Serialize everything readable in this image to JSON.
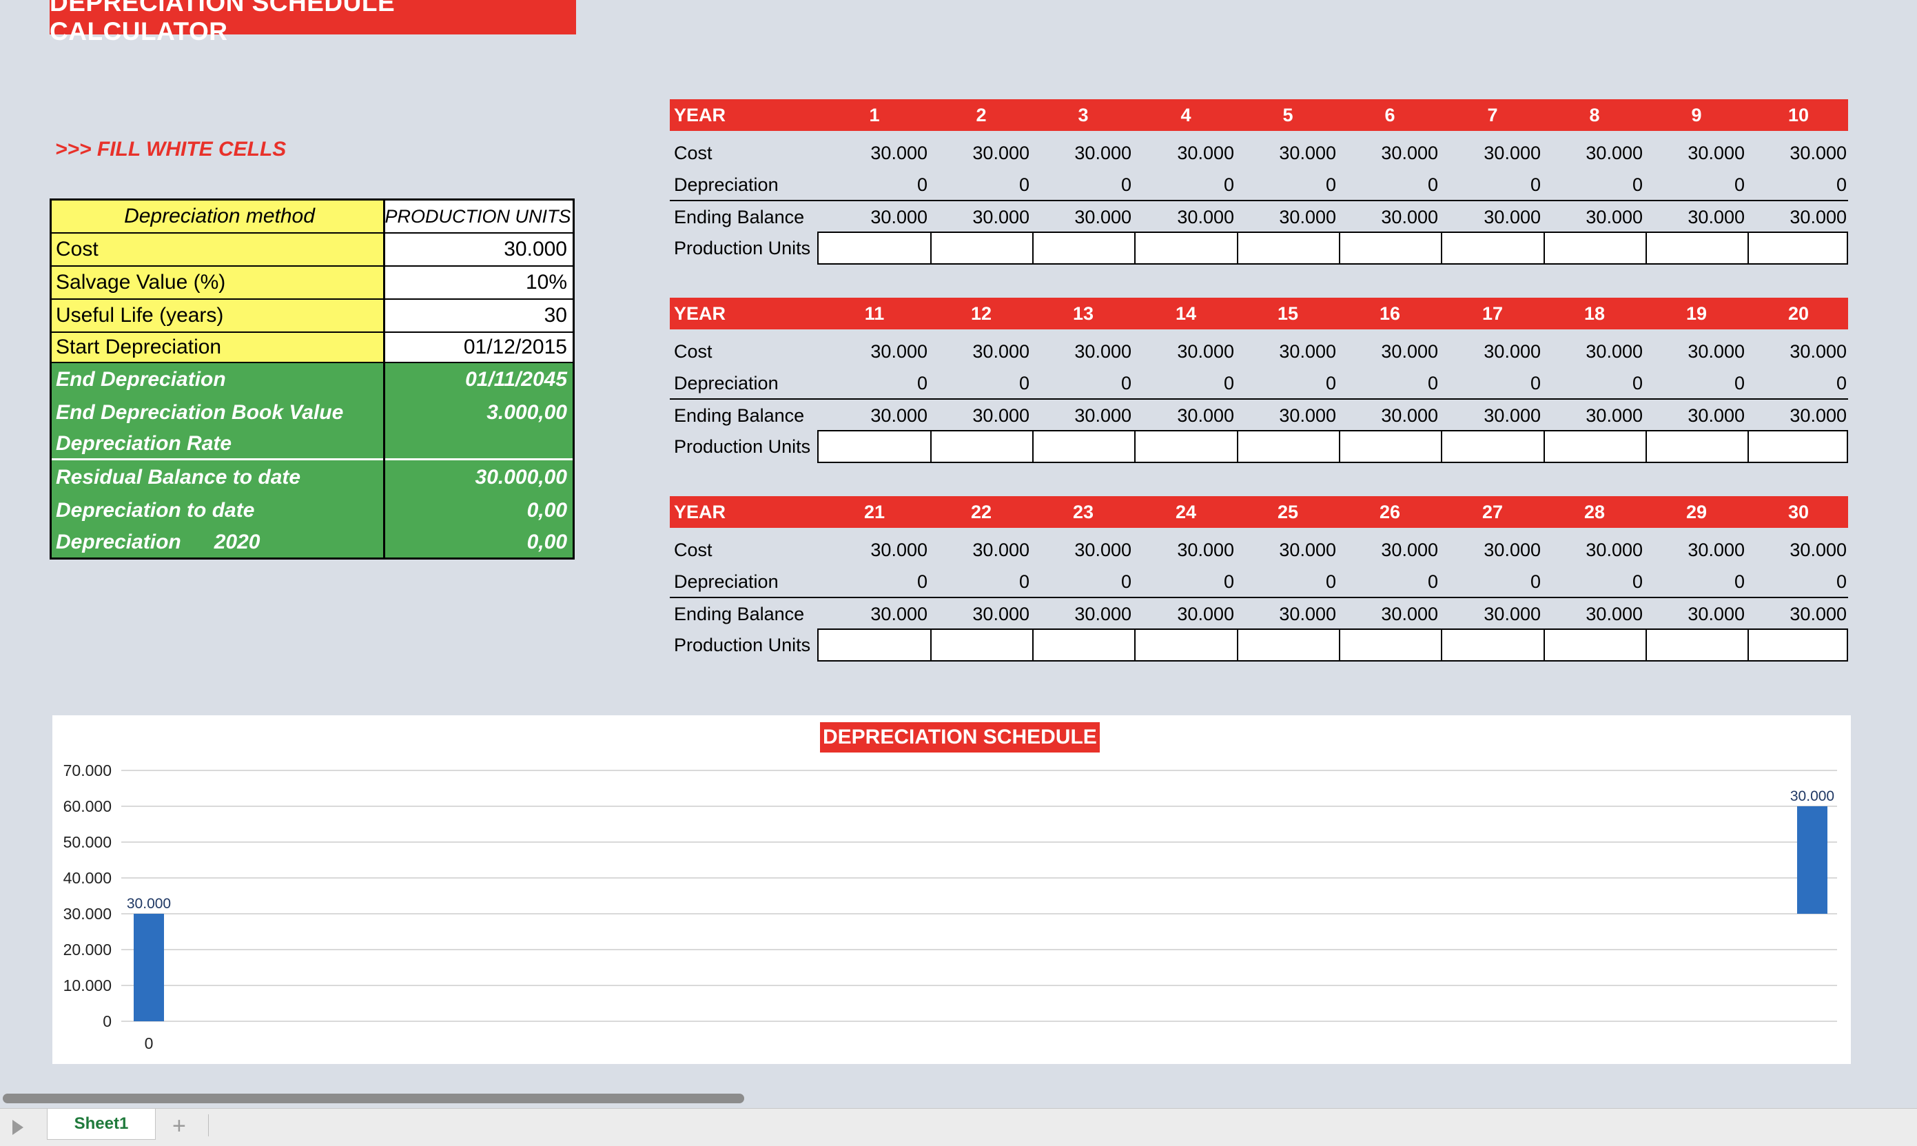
{
  "title": "DEPRECIATION SCHEDULE CALCULATOR",
  "fill_hint": ">>> FILL WHITE CELLS",
  "params": {
    "method_label": "Depreciation method",
    "method_value": "PRODUCTION UNITS",
    "cost_label": "Cost",
    "cost_value": "30.000",
    "salvage_label": "Salvage Value (%)",
    "salvage_value": "10%",
    "life_label": "Useful Life (years)",
    "life_value": "30",
    "start_label": "Start Depreciation",
    "start_value": "01/12/2015"
  },
  "results": {
    "end_dep_label": "End Depreciation",
    "end_dep_value": "01/11/2045",
    "end_book_label": "End Depreciation Book Value",
    "end_book_value": "3.000,00",
    "rate_label": "Depreciation Rate",
    "rate_value": "",
    "residual_label": "Residual Balance to date",
    "residual_value": "30.000,00",
    "dep_to_date_label": "Depreciation to date",
    "dep_to_date_value": "0,00",
    "dep_year_label": "Depreciation",
    "dep_year": "2020",
    "dep_year_value": "0,00"
  },
  "schedule_labels": {
    "year": "YEAR",
    "cost": "Cost",
    "depreciation": "Depreciation",
    "ending_balance": "Ending Balance",
    "production_units": "Production Units"
  },
  "schedule": [
    {
      "years": [
        "1",
        "2",
        "3",
        "4",
        "5",
        "6",
        "7",
        "8",
        "9",
        "10"
      ],
      "cost": [
        "30.000",
        "30.000",
        "30.000",
        "30.000",
        "30.000",
        "30.000",
        "30.000",
        "30.000",
        "30.000",
        "30.000"
      ],
      "depreciation": [
        "0",
        "0",
        "0",
        "0",
        "0",
        "0",
        "0",
        "0",
        "0",
        "0"
      ],
      "ending_balance": [
        "30.000",
        "30.000",
        "30.000",
        "30.000",
        "30.000",
        "30.000",
        "30.000",
        "30.000",
        "30.000",
        "30.000"
      ]
    },
    {
      "years": [
        "11",
        "12",
        "13",
        "14",
        "15",
        "16",
        "17",
        "18",
        "19",
        "20"
      ],
      "cost": [
        "30.000",
        "30.000",
        "30.000",
        "30.000",
        "30.000",
        "30.000",
        "30.000",
        "30.000",
        "30.000",
        "30.000"
      ],
      "depreciation": [
        "0",
        "0",
        "0",
        "0",
        "0",
        "0",
        "0",
        "0",
        "0",
        "0"
      ],
      "ending_balance": [
        "30.000",
        "30.000",
        "30.000",
        "30.000",
        "30.000",
        "30.000",
        "30.000",
        "30.000",
        "30.000",
        "30.000"
      ]
    },
    {
      "years": [
        "21",
        "22",
        "23",
        "24",
        "25",
        "26",
        "27",
        "28",
        "29",
        "30"
      ],
      "cost": [
        "30.000",
        "30.000",
        "30.000",
        "30.000",
        "30.000",
        "30.000",
        "30.000",
        "30.000",
        "30.000",
        "30.000"
      ],
      "depreciation": [
        "0",
        "0",
        "0",
        "0",
        "0",
        "0",
        "0",
        "0",
        "0",
        "0"
      ],
      "ending_balance": [
        "30.000",
        "30.000",
        "30.000",
        "30.000",
        "30.000",
        "30.000",
        "30.000",
        "30.000",
        "30.000",
        "30.000"
      ]
    }
  ],
  "chart_data": {
    "type": "bar",
    "title": "DEPRECIATION SCHEDULE",
    "ylim": [
      0,
      70000
    ],
    "y_ticks": [
      "0",
      "10.000",
      "20.000",
      "30.000",
      "40.000",
      "50.000",
      "60.000",
      "70.000"
    ],
    "x_tick_label": "0",
    "bars": [
      {
        "value": 30000,
        "base": 0,
        "label": "30.000"
      },
      {
        "value": 30000,
        "base": 30000,
        "label": "30.000"
      }
    ],
    "bar_color": "#2d6fbf",
    "grid": true
  },
  "sheet_tab": "Sheet1",
  "add_sheet": "+"
}
